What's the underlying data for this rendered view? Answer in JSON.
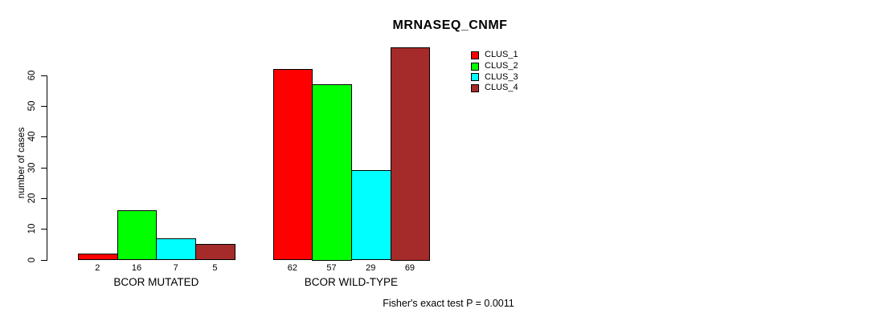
{
  "chart_data": {
    "type": "bar",
    "title": "MRNASEQ_CNMF",
    "xlabel": "",
    "ylabel": "number of cases",
    "categories": [
      "BCOR MUTATED",
      "BCOR WILD-TYPE"
    ],
    "series": [
      {
        "name": "CLUS_1",
        "color": "#FF0000",
        "values": [
          2,
          62
        ]
      },
      {
        "name": "CLUS_2",
        "color": "#00FF00",
        "values": [
          16,
          57
        ]
      },
      {
        "name": "CLUS_3",
        "color": "#00FFFF",
        "values": [
          7,
          29
        ]
      },
      {
        "name": "CLUS_4",
        "color": "#A52A2A",
        "values": [
          5,
          69
        ]
      }
    ],
    "ylim": [
      0,
      60
    ],
    "yticks": [
      0,
      10,
      20,
      30,
      40,
      50,
      60
    ],
    "bar_value_labels": true,
    "grid": false,
    "legend_position": "top-right",
    "annotation": "Fisher's exact test P = 0.0011"
  }
}
